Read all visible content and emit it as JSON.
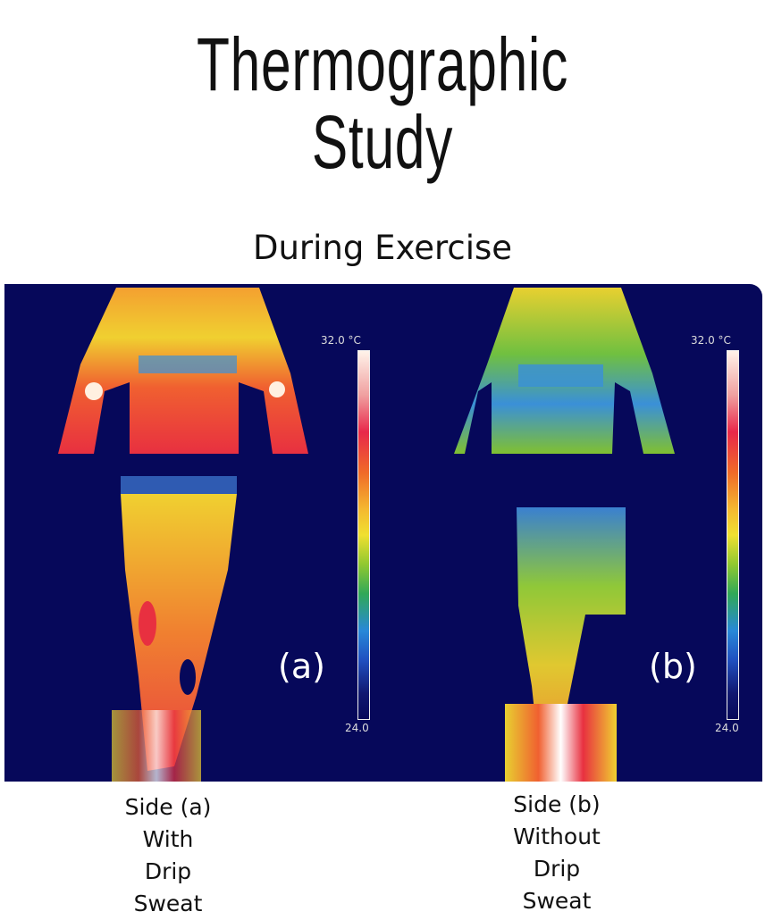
{
  "title": {
    "line1": "Thermographic",
    "line2": "Study"
  },
  "subtitle": "During Exercise",
  "thermal_image": {
    "panels": [
      {
        "label": "(a)",
        "scale_max": "32.0 °C",
        "scale_min": "24.0"
      },
      {
        "label": "(b)",
        "scale_max": "32.0 °C",
        "scale_min": "24.0"
      }
    ],
    "background_color": "#06085a"
  },
  "captions": [
    {
      "lines": [
        "Side (a)",
        "With",
        "Drip",
        "Sweat"
      ]
    },
    {
      "lines": [
        "Side (b)",
        "Without",
        "Drip",
        "Sweat"
      ]
    }
  ]
}
